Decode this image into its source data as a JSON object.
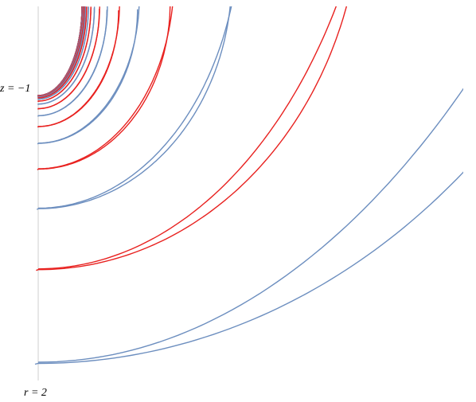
{
  "labels": {
    "z_label": "z = −1",
    "r_label": "r = 2"
  }
}
